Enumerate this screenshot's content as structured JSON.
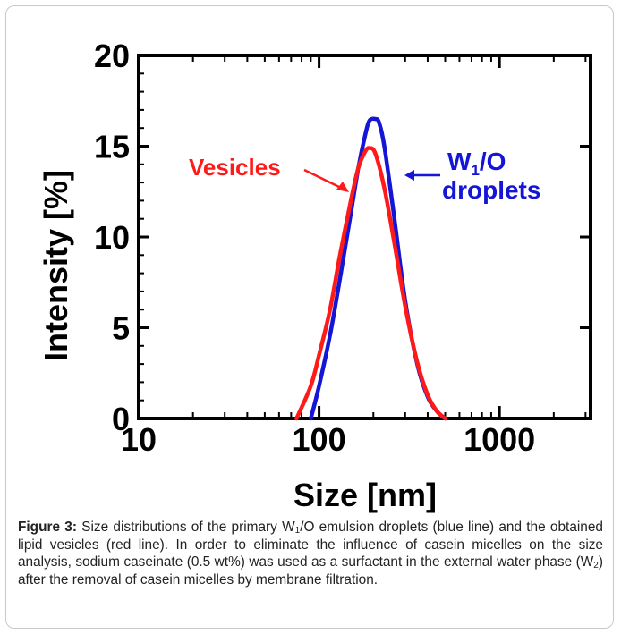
{
  "figure": {
    "caption_label": "Figure 3:",
    "caption_parts": [
      "Size distributions of the primary W",
      "1",
      "/O emulsion droplets (blue line) and the obtained lipid vesicles (red line). In order to eliminate the influence of casein micelles on the size analysis, sodium caseinate (0.5 wt%) was used as a surfactant in the external water phase (W",
      "2",
      ") after the removal of casein micelles by membrane filtration."
    ]
  },
  "chart_data": {
    "type": "line",
    "xlabel": "Size [nm]",
    "ylabel": "Intensity [%]",
    "xscale": "log",
    "xlim": [
      10,
      3200
    ],
    "ylim": [
      0,
      20
    ],
    "xticks": [
      10,
      100,
      1000
    ],
    "xtick_labels": [
      "10",
      "100",
      "1000"
    ],
    "yticks": [
      0,
      5,
      10,
      15,
      20
    ],
    "ytick_labels": [
      "0",
      "5",
      "10",
      "15",
      "20"
    ],
    "grid": false,
    "series": [
      {
        "name": "W1/O droplets",
        "color": "#1515d6",
        "x": [
          90,
          100,
          115,
          130,
          150,
          165,
          180,
          190,
          205,
          215,
          230,
          260,
          300,
          350,
          400,
          450,
          500
        ],
        "y": [
          0.0,
          1.8,
          4.6,
          7.6,
          11.3,
          13.8,
          15.6,
          16.4,
          16.5,
          16.3,
          15.0,
          11.2,
          6.5,
          3.0,
          1.2,
          0.4,
          0.0
        ]
      },
      {
        "name": "Vesicles",
        "color": "#ff1a1a",
        "x": [
          75,
          90,
          100,
          115,
          130,
          150,
          165,
          180,
          190,
          205,
          230,
          260,
          300,
          350,
          400,
          450,
          500
        ],
        "y": [
          0.0,
          1.8,
          3.5,
          6.0,
          8.9,
          12.0,
          13.8,
          14.7,
          14.9,
          14.6,
          12.7,
          9.8,
          6.2,
          3.1,
          1.3,
          0.4,
          0.0
        ]
      }
    ],
    "annotations": [
      {
        "label": "Vesicles",
        "color": "#ff1a1a",
        "target_series": "Vesicles"
      },
      {
        "label_main": "W",
        "label_sub": "1",
        "label_rest": "/O",
        "label_line2": "droplets",
        "color": "#1515d6",
        "target_series": "W1/O droplets"
      }
    ]
  }
}
